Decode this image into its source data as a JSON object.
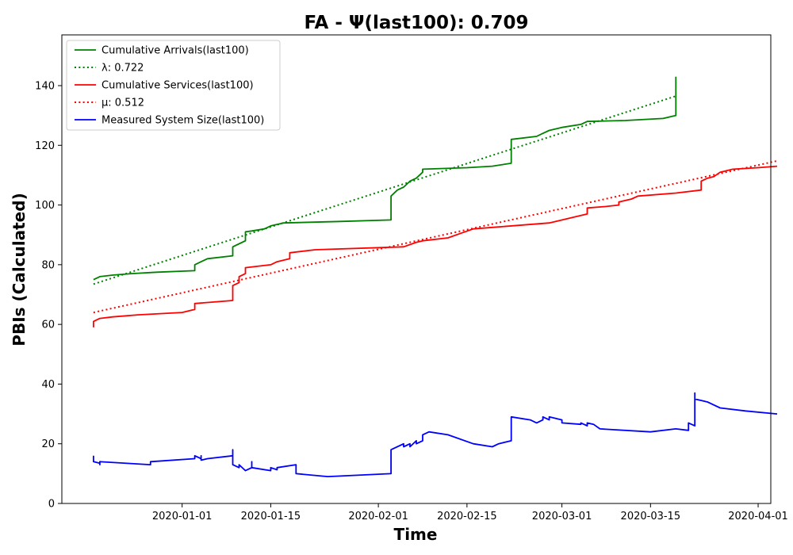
{
  "chart_data": {
    "type": "line",
    "title": "FA -  Ψ(last100): 0.709",
    "xlabel": "Time",
    "ylabel": "PBIs (Calculated)",
    "x_date_range": [
      "2019-12-13",
      "2020-04-03"
    ],
    "ylim": [
      0,
      157
    ],
    "xticks": [
      "2020-01-01",
      "2020-01-15",
      "2020-02-01",
      "2020-02-15",
      "2020-03-01",
      "2020-03-15",
      "2020-04-01"
    ],
    "yticks": [
      0,
      20,
      40,
      60,
      80,
      100,
      120,
      140
    ],
    "grid": false,
    "legend_position": "top-left",
    "series": [
      {
        "name": "Cumulative Arrivals(last100)",
        "color": "#008000",
        "style": "solid",
        "points": [
          [
            "2019-12-18",
            75
          ],
          [
            "2019-12-19",
            76
          ],
          [
            "2019-12-21",
            76.5
          ],
          [
            "2019-12-24",
            77
          ],
          [
            "2019-12-28",
            77.5
          ],
          [
            "2020-01-03",
            78
          ],
          [
            "2020-01-03",
            80
          ],
          [
            "2020-01-04",
            81
          ],
          [
            "2020-01-05",
            82
          ],
          [
            "2020-01-09",
            83
          ],
          [
            "2020-01-09",
            86
          ],
          [
            "2020-01-10",
            87
          ],
          [
            "2020-01-11",
            88
          ],
          [
            "2020-01-11",
            91
          ],
          [
            "2020-01-12",
            91.3
          ],
          [
            "2020-01-14",
            92
          ],
          [
            "2020-01-15",
            93
          ],
          [
            "2020-01-17",
            94
          ],
          [
            "2020-01-26",
            94.5
          ],
          [
            "2020-02-03",
            95
          ],
          [
            "2020-02-03",
            103
          ],
          [
            "2020-02-04",
            105
          ],
          [
            "2020-02-05",
            106
          ],
          [
            "2020-02-06",
            108
          ],
          [
            "2020-02-07",
            109
          ],
          [
            "2020-02-08",
            111
          ],
          [
            "2020-02-08",
            112
          ],
          [
            "2020-02-15",
            112.5
          ],
          [
            "2020-02-19",
            113
          ],
          [
            "2020-02-22",
            114
          ],
          [
            "2020-02-22",
            122
          ],
          [
            "2020-02-26",
            123
          ],
          [
            "2020-02-27",
            124
          ],
          [
            "2020-02-28",
            125
          ],
          [
            "2020-03-01",
            126
          ],
          [
            "2020-03-04",
            127
          ],
          [
            "2020-03-05",
            128
          ],
          [
            "2020-03-11",
            128.3
          ],
          [
            "2020-03-17",
            129
          ],
          [
            "2020-03-19",
            130
          ],
          [
            "2020-03-19",
            143
          ]
        ]
      },
      {
        "name": "λ: 0.722",
        "color": "#008000",
        "style": "dotted",
        "points": [
          [
            "2019-12-18",
            73.5
          ],
          [
            "2020-03-19",
            136.5
          ]
        ]
      },
      {
        "name": "Cumulative Services(last100)",
        "color": "#ff0000",
        "style": "solid",
        "points": [
          [
            "2019-12-18",
            59
          ],
          [
            "2019-12-18",
            61
          ],
          [
            "2019-12-19",
            62
          ],
          [
            "2019-12-21",
            62.5
          ],
          [
            "2019-12-25",
            63.2
          ],
          [
            "2020-01-01",
            64
          ],
          [
            "2020-01-03",
            65
          ],
          [
            "2020-01-03",
            67
          ],
          [
            "2020-01-09",
            68
          ],
          [
            "2020-01-09",
            73
          ],
          [
            "2020-01-10",
            74
          ],
          [
            "2020-01-10",
            76
          ],
          [
            "2020-01-11",
            77
          ],
          [
            "2020-01-11",
            79
          ],
          [
            "2020-01-15",
            80
          ],
          [
            "2020-01-16",
            81
          ],
          [
            "2020-01-18",
            82
          ],
          [
            "2020-01-18",
            84
          ],
          [
            "2020-01-22",
            85
          ],
          [
            "2020-02-05",
            86
          ],
          [
            "2020-02-07",
            87.5
          ],
          [
            "2020-02-08",
            88
          ],
          [
            "2020-02-12",
            89
          ],
          [
            "2020-02-14",
            90.5
          ],
          [
            "2020-02-16",
            92
          ],
          [
            "2020-02-19",
            92.5
          ],
          [
            "2020-02-28",
            94
          ],
          [
            "2020-03-03",
            96
          ],
          [
            "2020-03-05",
            97
          ],
          [
            "2020-03-05",
            99
          ],
          [
            "2020-03-08",
            99.5
          ],
          [
            "2020-03-10",
            100
          ],
          [
            "2020-03-10",
            101
          ],
          [
            "2020-03-12",
            102
          ],
          [
            "2020-03-13",
            103
          ],
          [
            "2020-03-19",
            104
          ],
          [
            "2020-03-23",
            105
          ],
          [
            "2020-03-23",
            108
          ],
          [
            "2020-03-24",
            109
          ],
          [
            "2020-03-25",
            109.5
          ],
          [
            "2020-03-26",
            111
          ],
          [
            "2020-03-28",
            112
          ],
          [
            "2020-04-01",
            112.5
          ],
          [
            "2020-04-04",
            113
          ]
        ]
      },
      {
        "name": "μ: 0.512",
        "color": "#ff0000",
        "style": "dotted",
        "points": [
          [
            "2019-12-18",
            64
          ],
          [
            "2020-04-04",
            114.8
          ]
        ]
      },
      {
        "name": "Measured System Size(last100)",
        "color": "#0000ff",
        "style": "solid",
        "points": [
          [
            "2019-12-18",
            16
          ],
          [
            "2019-12-18",
            14
          ],
          [
            "2019-12-19",
            13.5
          ],
          [
            "2019-12-19",
            13
          ],
          [
            "2019-12-19",
            14
          ],
          [
            "2019-12-27",
            13
          ],
          [
            "2019-12-27",
            14
          ],
          [
            "2020-01-03",
            15
          ],
          [
            "2020-01-03",
            16
          ],
          [
            "2020-01-04",
            15
          ],
          [
            "2020-01-04",
            16
          ],
          [
            "2020-01-04",
            14.5
          ],
          [
            "2020-01-05",
            15
          ],
          [
            "2020-01-09",
            16
          ],
          [
            "2020-01-09",
            18
          ],
          [
            "2020-01-09",
            13
          ],
          [
            "2020-01-10",
            12
          ],
          [
            "2020-01-10",
            13
          ],
          [
            "2020-01-11",
            11
          ],
          [
            "2020-01-12",
            12
          ],
          [
            "2020-01-12",
            14
          ],
          [
            "2020-01-12",
            12
          ],
          [
            "2020-01-15",
            11
          ],
          [
            "2020-01-15",
            12
          ],
          [
            "2020-01-16",
            11.3
          ],
          [
            "2020-01-16",
            12
          ],
          [
            "2020-01-19",
            13
          ],
          [
            "2020-01-19",
            10
          ],
          [
            "2020-01-24",
            9
          ],
          [
            "2020-02-03",
            10
          ],
          [
            "2020-02-03",
            18
          ],
          [
            "2020-02-05",
            20
          ],
          [
            "2020-02-05",
            19
          ],
          [
            "2020-02-06",
            20
          ],
          [
            "2020-02-06",
            19
          ],
          [
            "2020-02-07",
            21
          ],
          [
            "2020-02-07",
            20
          ],
          [
            "2020-02-08",
            21
          ],
          [
            "2020-02-08",
            23
          ],
          [
            "2020-02-09",
            24
          ],
          [
            "2020-02-12",
            23
          ],
          [
            "2020-02-16",
            20
          ],
          [
            "2020-02-19",
            19
          ],
          [
            "2020-02-20",
            20
          ],
          [
            "2020-02-22",
            21
          ],
          [
            "2020-02-22",
            29
          ],
          [
            "2020-02-25",
            28
          ],
          [
            "2020-02-26",
            27
          ],
          [
            "2020-02-27",
            28
          ],
          [
            "2020-02-27",
            29
          ],
          [
            "2020-02-28",
            28
          ],
          [
            "2020-02-28",
            29
          ],
          [
            "2020-03-01",
            28
          ],
          [
            "2020-03-01",
            27
          ],
          [
            "2020-03-04",
            26.5
          ],
          [
            "2020-03-04",
            27
          ],
          [
            "2020-03-05",
            26
          ],
          [
            "2020-03-05",
            27
          ],
          [
            "2020-03-06",
            26.5
          ],
          [
            "2020-03-07",
            25
          ],
          [
            "2020-03-15",
            24
          ],
          [
            "2020-03-19",
            25
          ],
          [
            "2020-03-21",
            24.5
          ],
          [
            "2020-03-21",
            27
          ],
          [
            "2020-03-22",
            26
          ],
          [
            "2020-03-22",
            37
          ],
          [
            "2020-03-22",
            35
          ],
          [
            "2020-03-24",
            34
          ],
          [
            "2020-03-26",
            32
          ],
          [
            "2020-03-30",
            31
          ],
          [
            "2020-04-04",
            30
          ]
        ]
      }
    ]
  }
}
